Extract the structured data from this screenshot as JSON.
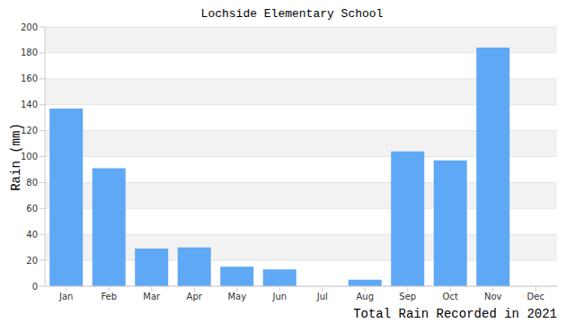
{
  "chart_data": {
    "type": "bar",
    "title": "Lochside Elementary School",
    "y_label": "Rain (mm)",
    "x_label": "Total Rain Recorded in 2021",
    "categories": [
      "Jan",
      "Feb",
      "Mar",
      "Apr",
      "May",
      "Jun",
      "Jul",
      "Aug",
      "Sep",
      "Oct",
      "Nov",
      "Dec"
    ],
    "values": [
      137,
      91,
      29,
      30,
      15,
      13,
      0,
      5,
      104,
      97,
      184,
      0
    ],
    "color": "#5fa8f5",
    "ylim": [
      0,
      200
    ],
    "yticks": [
      0,
      20,
      40,
      60,
      80,
      100,
      120,
      140,
      160,
      180,
      200
    ],
    "grid": true
  }
}
